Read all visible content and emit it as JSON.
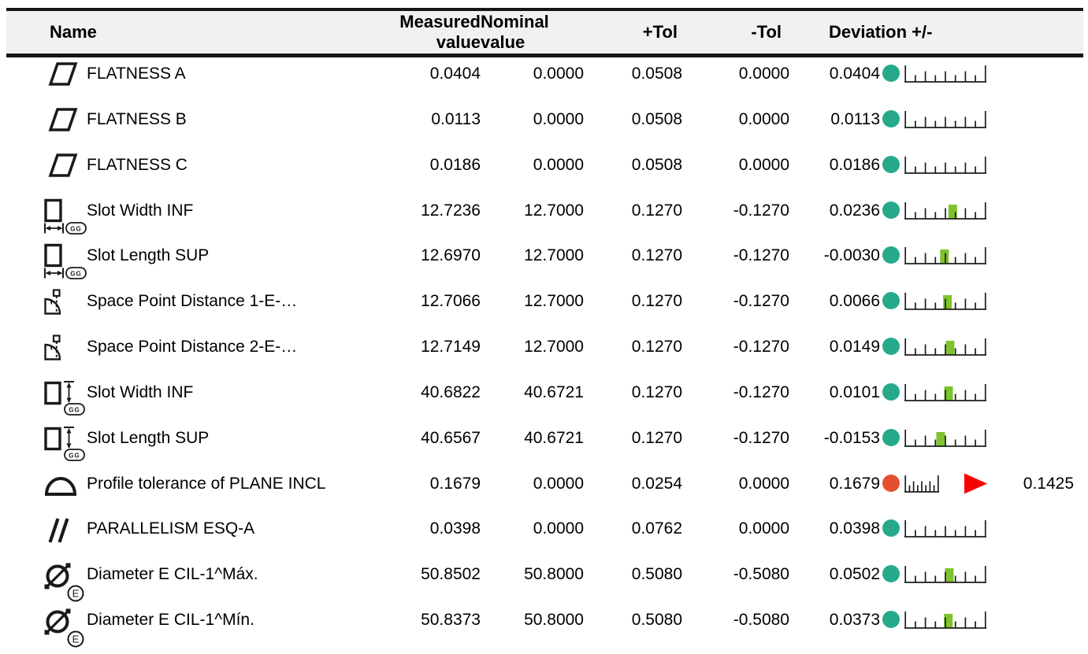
{
  "header": {
    "name": "Name",
    "measured": "Measured value",
    "nominal": "Nominal value",
    "plus_tol": "+Tol",
    "minus_tol": "-Tol",
    "deviation": "Deviation +/-"
  },
  "colors": {
    "in_tolerance_dot": "#26a98b",
    "out_of_tolerance_dot": "#e4502e",
    "deviation_bar": "#7ec32d",
    "out_arrow": "#fa0000",
    "header_background": "#f1f1f1",
    "line": "#161616"
  },
  "rows": [
    {
      "icon": "flatness-icon",
      "name": "FLATNESS A",
      "measured": "0.0404",
      "nominal": "0.0000",
      "plus_tol": "0.0508",
      "minus_tol": "0.0000",
      "deviation": "0.0404",
      "status": "in_tolerance",
      "scale_style": "normal",
      "scale_bar": false
    },
    {
      "icon": "flatness-icon",
      "name": "FLATNESS B",
      "measured": "0.0113",
      "nominal": "0.0000",
      "plus_tol": "0.0508",
      "minus_tol": "0.0000",
      "deviation": "0.0113",
      "status": "in_tolerance",
      "scale_style": "normal",
      "scale_bar": false
    },
    {
      "icon": "flatness-icon",
      "name": "FLATNESS C",
      "measured": "0.0186",
      "nominal": "0.0000",
      "plus_tol": "0.0508",
      "minus_tol": "0.0000",
      "deviation": "0.0186",
      "status": "in_tolerance",
      "scale_style": "normal",
      "scale_bar": false
    },
    {
      "icon": "slot-width-horizontal-icon",
      "name": "Slot Width INF",
      "measured": "12.7236",
      "nominal": "12.7000",
      "plus_tol": "0.1270",
      "minus_tol": "-0.1270",
      "deviation": "0.0236",
      "status": "in_tolerance",
      "scale_style": "normal",
      "scale_bar": true
    },
    {
      "icon": "slot-width-horizontal-icon",
      "name": "Slot Length SUP",
      "measured": "12.6970",
      "nominal": "12.7000",
      "plus_tol": "0.1270",
      "minus_tol": "-0.1270",
      "deviation": "-0.0030",
      "status": "in_tolerance",
      "scale_style": "normal",
      "scale_bar": true
    },
    {
      "icon": "space-point-distance-icon",
      "name": "Space Point Distance 1-E-…",
      "measured": "12.7066",
      "nominal": "12.7000",
      "plus_tol": "0.1270",
      "minus_tol": "-0.1270",
      "deviation": "0.0066",
      "status": "in_tolerance",
      "scale_style": "normal",
      "scale_bar": true
    },
    {
      "icon": "space-point-distance-icon",
      "name": "Space Point Distance 2-E-…",
      "measured": "12.7149",
      "nominal": "12.7000",
      "plus_tol": "0.1270",
      "minus_tol": "-0.1270",
      "deviation": "0.0149",
      "status": "in_tolerance",
      "scale_style": "normal",
      "scale_bar": true
    },
    {
      "icon": "slot-width-vertical-icon",
      "name": "Slot Width INF",
      "measured": "40.6822",
      "nominal": "40.6721",
      "plus_tol": "0.1270",
      "minus_tol": "-0.1270",
      "deviation": "0.0101",
      "status": "in_tolerance",
      "scale_style": "normal",
      "scale_bar": true
    },
    {
      "icon": "slot-width-vertical-icon",
      "name": "Slot Length SUP",
      "measured": "40.6567",
      "nominal": "40.6721",
      "plus_tol": "0.1270",
      "minus_tol": "-0.1270",
      "deviation": "-0.0153",
      "status": "in_tolerance",
      "scale_style": "normal",
      "scale_bar": true
    },
    {
      "icon": "profile-of-surface-icon",
      "name": "Profile tolerance of PLANE INCL",
      "measured": "0.1679",
      "nominal": "0.0000",
      "plus_tol": "0.0254",
      "minus_tol": "0.0000",
      "deviation": "0.1679",
      "status": "out_of_tolerance",
      "scale_style": "compressed",
      "scale_bar": false,
      "out_arrow": true,
      "out_of_tol": "0.1425"
    },
    {
      "icon": "parallelism-icon",
      "name": "PARALLELISM ESQ-A",
      "measured": "0.0398",
      "nominal": "0.0000",
      "plus_tol": "0.0762",
      "minus_tol": "0.0000",
      "deviation": "0.0398",
      "status": "in_tolerance",
      "scale_style": "normal",
      "scale_bar": false
    },
    {
      "icon": "diameter-icon",
      "name": "Diameter E CIL-1^Máx.",
      "measured": "50.8502",
      "nominal": "50.8000",
      "plus_tol": "0.5080",
      "minus_tol": "-0.5080",
      "deviation": "0.0502",
      "status": "in_tolerance",
      "scale_style": "normal",
      "scale_bar": true
    },
    {
      "icon": "diameter-icon",
      "name": "Diameter E CIL-1^Mín.",
      "measured": "50.8373",
      "nominal": "50.8000",
      "plus_tol": "0.5080",
      "minus_tol": "-0.5080",
      "deviation": "0.0373",
      "status": "in_tolerance",
      "scale_style": "normal",
      "scale_bar": true
    }
  ]
}
